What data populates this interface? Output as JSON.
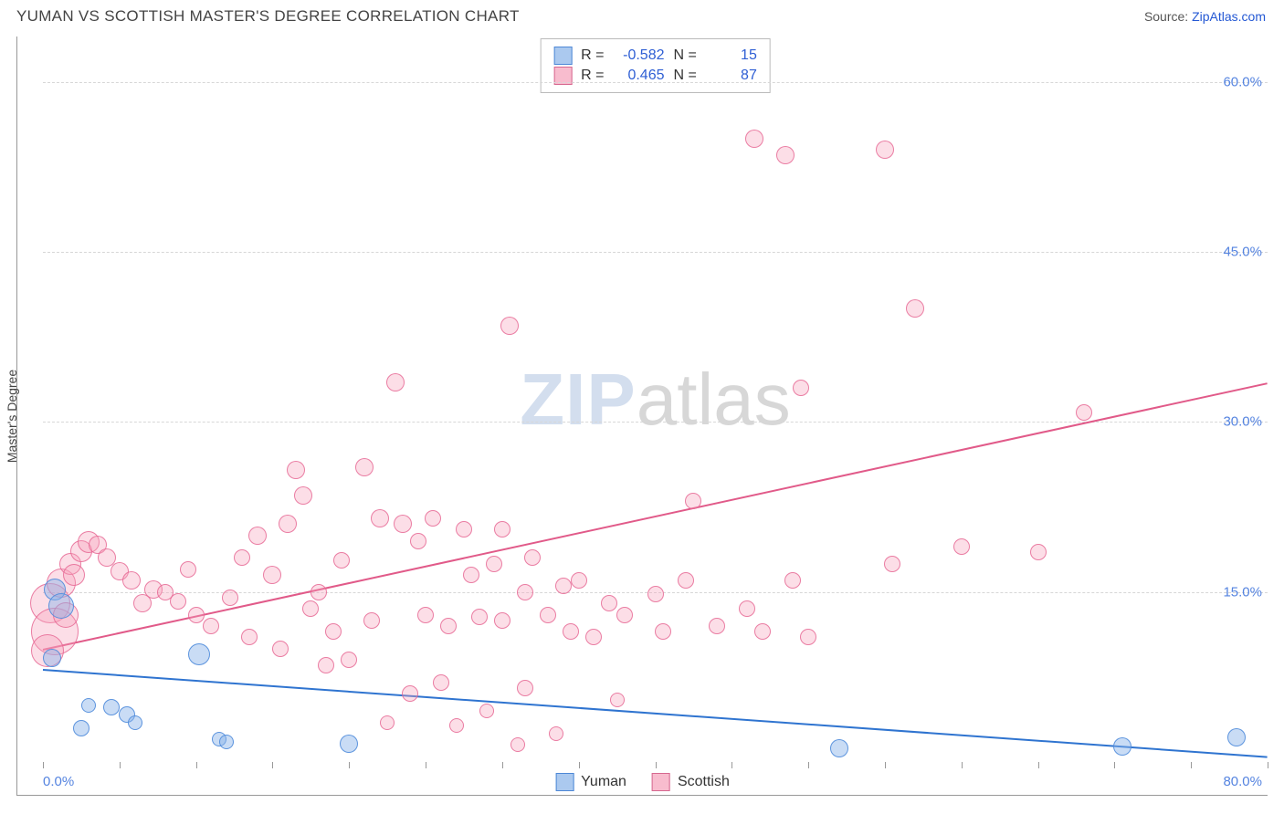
{
  "title": "YUMAN VS SCOTTISH MASTER'S DEGREE CORRELATION CHART",
  "source_prefix": "Source: ",
  "source_name": "ZipAtlas.com",
  "ylabel": "Master's Degree",
  "watermark_zip": "ZIP",
  "watermark_atlas": "atlas",
  "chart": {
    "type": "scatter",
    "xlim": [
      0,
      80
    ],
    "ylim": [
      0,
      64
    ],
    "x_tick_positions": [
      0,
      5,
      10,
      15,
      20,
      25,
      30,
      35,
      40,
      45,
      50,
      55,
      60,
      65,
      70,
      75,
      80
    ],
    "y_ticks": [
      15,
      30,
      45,
      60
    ],
    "y_tick_labels": [
      "15.0%",
      "30.0%",
      "45.0%",
      "60.0%"
    ],
    "xlim_labels": [
      "0.0%",
      "80.0%"
    ],
    "background_color": "#ffffff",
    "grid_color": "#d7d7d7",
    "axis_color": "#999999",
    "tick_label_color": "#5584e0",
    "tick_label_fontsize": 15
  },
  "series": {
    "yuman": {
      "label": "Yuman",
      "color_fill": "rgba(135,178,232,0.45)",
      "color_stroke": "#4d87d6",
      "R": "-0.582",
      "N": "15",
      "trend": {
        "x1": 0,
        "y1": 8.2,
        "x2": 80,
        "y2": 0.5
      },
      "points": [
        {
          "x": 0.8,
          "y": 15.2,
          "r": 12
        },
        {
          "x": 0.6,
          "y": 9.2,
          "r": 10
        },
        {
          "x": 2.5,
          "y": 3.0,
          "r": 9
        },
        {
          "x": 4.5,
          "y": 4.8,
          "r": 9
        },
        {
          "x": 5.5,
          "y": 4.2,
          "r": 9
        },
        {
          "x": 10.2,
          "y": 9.5,
          "r": 12
        },
        {
          "x": 11.5,
          "y": 2.0,
          "r": 8
        },
        {
          "x": 12.0,
          "y": 1.8,
          "r": 8
        },
        {
          "x": 20.0,
          "y": 1.6,
          "r": 10
        },
        {
          "x": 52.0,
          "y": 1.2,
          "r": 10
        },
        {
          "x": 70.5,
          "y": 1.4,
          "r": 10
        },
        {
          "x": 78.0,
          "y": 2.2,
          "r": 10
        },
        {
          "x": 1.2,
          "y": 13.8,
          "r": 14
        },
        {
          "x": 3.0,
          "y": 5.0,
          "r": 8
        },
        {
          "x": 6.0,
          "y": 3.5,
          "r": 8
        }
      ]
    },
    "scottish": {
      "label": "Scottish",
      "color_fill": "rgba(245,160,185,0.35)",
      "color_stroke": "#d6678f",
      "R": "0.465",
      "N": "87",
      "trend": {
        "x1": 0,
        "y1": 10.0,
        "x2": 80,
        "y2": 33.5
      },
      "points": [
        {
          "x": 0.5,
          "y": 14.0,
          "r": 22
        },
        {
          "x": 0.8,
          "y": 11.5,
          "r": 26
        },
        {
          "x": 1.2,
          "y": 15.8,
          "r": 16
        },
        {
          "x": 1.8,
          "y": 17.5,
          "r": 12
        },
        {
          "x": 2.5,
          "y": 18.6,
          "r": 12
        },
        {
          "x": 3.0,
          "y": 19.4,
          "r": 12
        },
        {
          "x": 3.6,
          "y": 19.2,
          "r": 10
        },
        {
          "x": 4.2,
          "y": 18.0,
          "r": 10
        },
        {
          "x": 5.0,
          "y": 16.8,
          "r": 10
        },
        {
          "x": 5.8,
          "y": 16.0,
          "r": 10
        },
        {
          "x": 6.5,
          "y": 14.0,
          "r": 10
        },
        {
          "x": 7.2,
          "y": 15.2,
          "r": 10
        },
        {
          "x": 8.0,
          "y": 15.0,
          "r": 9
        },
        {
          "x": 8.8,
          "y": 14.2,
          "r": 9
        },
        {
          "x": 9.5,
          "y": 17.0,
          "r": 9
        },
        {
          "x": 11.0,
          "y": 12.0,
          "r": 9
        },
        {
          "x": 12.2,
          "y": 14.5,
          "r": 9
        },
        {
          "x": 13.5,
          "y": 11.0,
          "r": 9
        },
        {
          "x": 14.0,
          "y": 20.0,
          "r": 10
        },
        {
          "x": 15.0,
          "y": 16.5,
          "r": 10
        },
        {
          "x": 15.5,
          "y": 10.0,
          "r": 9
        },
        {
          "x": 16.0,
          "y": 21.0,
          "r": 10
        },
        {
          "x": 16.5,
          "y": 25.8,
          "r": 10
        },
        {
          "x": 17.0,
          "y": 23.5,
          "r": 10
        },
        {
          "x": 17.5,
          "y": 13.5,
          "r": 9
        },
        {
          "x": 18.5,
          "y": 8.5,
          "r": 9
        },
        {
          "x": 19.0,
          "y": 11.5,
          "r": 9
        },
        {
          "x": 19.5,
          "y": 17.8,
          "r": 9
        },
        {
          "x": 20.0,
          "y": 9.0,
          "r": 9
        },
        {
          "x": 21.0,
          "y": 26.0,
          "r": 10
        },
        {
          "x": 21.5,
          "y": 12.5,
          "r": 9
        },
        {
          "x": 22.0,
          "y": 21.5,
          "r": 10
        },
        {
          "x": 22.5,
          "y": 3.5,
          "r": 8
        },
        {
          "x": 23.0,
          "y": 33.5,
          "r": 10
        },
        {
          "x": 23.5,
          "y": 21.0,
          "r": 10
        },
        {
          "x": 24.0,
          "y": 6.0,
          "r": 9
        },
        {
          "x": 24.5,
          "y": 19.5,
          "r": 9
        },
        {
          "x": 25.0,
          "y": 13.0,
          "r": 9
        },
        {
          "x": 25.5,
          "y": 21.5,
          "r": 9
        },
        {
          "x": 26.5,
          "y": 12.0,
          "r": 9
        },
        {
          "x": 27.0,
          "y": 3.2,
          "r": 8
        },
        {
          "x": 27.5,
          "y": 20.5,
          "r": 9
        },
        {
          "x": 28.0,
          "y": 16.5,
          "r": 9
        },
        {
          "x": 28.5,
          "y": 12.8,
          "r": 9
        },
        {
          "x": 29.0,
          "y": 4.5,
          "r": 8
        },
        {
          "x": 29.5,
          "y": 17.5,
          "r": 9
        },
        {
          "x": 30.0,
          "y": 20.5,
          "r": 9
        },
        {
          "x": 30.0,
          "y": 12.5,
          "r": 9
        },
        {
          "x": 30.5,
          "y": 38.5,
          "r": 10
        },
        {
          "x": 31.0,
          "y": 1.5,
          "r": 8
        },
        {
          "x": 31.5,
          "y": 15.0,
          "r": 9
        },
        {
          "x": 31.5,
          "y": 6.5,
          "r": 9
        },
        {
          "x": 32.0,
          "y": 18.0,
          "r": 9
        },
        {
          "x": 33.0,
          "y": 13.0,
          "r": 9
        },
        {
          "x": 33.5,
          "y": 2.5,
          "r": 8
        },
        {
          "x": 34.0,
          "y": 15.5,
          "r": 9
        },
        {
          "x": 34.5,
          "y": 11.5,
          "r": 9
        },
        {
          "x": 35.0,
          "y": 16.0,
          "r": 9
        },
        {
          "x": 36.0,
          "y": 11.0,
          "r": 9
        },
        {
          "x": 37.0,
          "y": 14.0,
          "r": 9
        },
        {
          "x": 37.5,
          "y": 5.5,
          "r": 8
        },
        {
          "x": 38.0,
          "y": 13.0,
          "r": 9
        },
        {
          "x": 40.0,
          "y": 14.8,
          "r": 9
        },
        {
          "x": 40.5,
          "y": 11.5,
          "r": 9
        },
        {
          "x": 42.0,
          "y": 16.0,
          "r": 9
        },
        {
          "x": 42.5,
          "y": 23.0,
          "r": 9
        },
        {
          "x": 46.0,
          "y": 13.5,
          "r": 9
        },
        {
          "x": 46.5,
          "y": 55.0,
          "r": 10
        },
        {
          "x": 47.0,
          "y": 11.5,
          "r": 9
        },
        {
          "x": 48.5,
          "y": 53.5,
          "r": 10
        },
        {
          "x": 49.0,
          "y": 16.0,
          "r": 9
        },
        {
          "x": 49.5,
          "y": 33.0,
          "r": 9
        },
        {
          "x": 50.0,
          "y": 11.0,
          "r": 9
        },
        {
          "x": 55.0,
          "y": 54.0,
          "r": 10
        },
        {
          "x": 55.5,
          "y": 17.5,
          "r": 9
        },
        {
          "x": 57.0,
          "y": 40.0,
          "r": 10
        },
        {
          "x": 60.0,
          "y": 19.0,
          "r": 9
        },
        {
          "x": 65.0,
          "y": 18.5,
          "r": 9
        },
        {
          "x": 68.0,
          "y": 30.8,
          "r": 9
        },
        {
          "x": 0.3,
          "y": 9.8,
          "r": 18
        },
        {
          "x": 1.5,
          "y": 13.0,
          "r": 14
        },
        {
          "x": 2.0,
          "y": 16.5,
          "r": 12
        },
        {
          "x": 10.0,
          "y": 13.0,
          "r": 9
        },
        {
          "x": 13.0,
          "y": 18.0,
          "r": 9
        },
        {
          "x": 18.0,
          "y": 15.0,
          "r": 9
        },
        {
          "x": 26.0,
          "y": 7.0,
          "r": 9
        },
        {
          "x": 44.0,
          "y": 12.0,
          "r": 9
        }
      ]
    }
  },
  "legend_stats": {
    "r_label": "R =",
    "n_label": "N ="
  },
  "legend_bottom": [
    "Yuman",
    "Scottish"
  ]
}
